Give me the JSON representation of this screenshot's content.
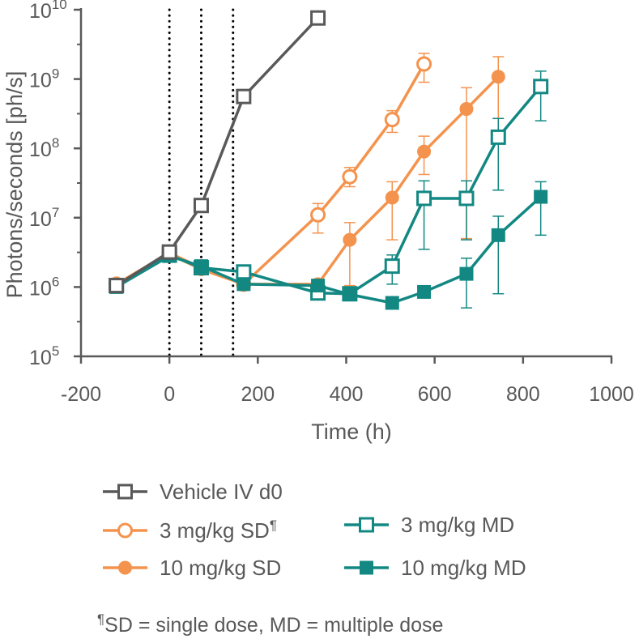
{
  "chart_data": {
    "type": "line",
    "title": "",
    "xlabel": "Time (h)",
    "ylabel": "Photons/seconds [ph/s]",
    "xlim": [
      -200,
      1000
    ],
    "xticks": [
      -200,
      0,
      200,
      400,
      600,
      800,
      1000
    ],
    "xtick_labels": [
      "-200",
      "0",
      "200",
      "400",
      "600",
      "800",
      "1000"
    ],
    "yscale": "log",
    "ylim": [
      100000,
      10000000000
    ],
    "yticks": [
      100000,
      1000000,
      10000000,
      100000000,
      1000000000,
      10000000000
    ],
    "ytick_labels": [
      {
        "base": "10",
        "exp": "5"
      },
      {
        "base": "10",
        "exp": "6"
      },
      {
        "base": "10",
        "exp": "7"
      },
      {
        "base": "10",
        "exp": "8"
      },
      {
        "base": "10",
        "exp": "9"
      },
      {
        "base": "10",
        "exp": "10"
      }
    ],
    "grid": false,
    "dosing_lines_x": [
      0,
      72,
      144
    ],
    "legend_position": "bottom",
    "series": [
      {
        "name": "Vehicle IV d0",
        "color": "#595959",
        "marker": "open-square",
        "x": [
          -120,
          0,
          72,
          168,
          336
        ],
        "y": [
          1050000,
          3200000,
          15000000,
          560000000,
          7600000000
        ],
        "err_low": [
          null,
          null,
          null,
          null,
          null
        ],
        "err_high": [
          null,
          null,
          null,
          null,
          null
        ]
      },
      {
        "name": "3 mg/kg SD",
        "name_mark": "¶",
        "color": "#F4934D",
        "marker": "open-circle",
        "x": [
          -120,
          0,
          72,
          168,
          336,
          408,
          504,
          576
        ],
        "y": [
          1100000,
          3100000,
          1900000,
          1100000,
          11000000,
          39000000,
          260000000,
          1650000000
        ],
        "err_low": [
          null,
          null,
          null,
          null,
          6000000,
          28000000,
          170000000,
          900000000
        ],
        "err_high": [
          null,
          null,
          null,
          null,
          16000000,
          53000000,
          350000000,
          2350000000
        ]
      },
      {
        "name": "10 mg/kg SD",
        "color": "#F4934D",
        "marker": "filled-circle",
        "x": [
          -120,
          0,
          72,
          168,
          336,
          408,
          504,
          576,
          672,
          744
        ],
        "y": [
          1100000,
          3000000,
          1800000,
          1100000,
          1100000,
          4800000,
          19500000,
          90000000,
          370000000,
          1080000000
        ],
        "err_low": [
          null,
          null,
          null,
          null,
          null,
          1050000,
          4800000,
          42000000,
          5000000,
          25000000
        ],
        "err_high": [
          null,
          null,
          null,
          null,
          null,
          8500000,
          33000000,
          150000000,
          750000000,
          2100000000
        ]
      },
      {
        "name": "3 mg/kg MD",
        "color": "#138883",
        "marker": "open-square",
        "x": [
          -120,
          0,
          72,
          168,
          336,
          408,
          504,
          576,
          672,
          744,
          840
        ],
        "y": [
          1050000,
          2900000,
          1900000,
          1650000,
          820000,
          800000,
          2000000,
          19000000,
          19000000,
          145000000,
          780000000
        ],
        "err_low": [
          null,
          null,
          null,
          null,
          null,
          null,
          1100000,
          3500000,
          4800000,
          25000000,
          250000000
        ],
        "err_high": [
          null,
          null,
          null,
          null,
          null,
          null,
          2900000,
          34000000,
          34000000,
          270000000,
          1300000000
        ]
      },
      {
        "name": "10 mg/kg MD",
        "color": "#138883",
        "marker": "filled-square",
        "x": [
          -120,
          0,
          72,
          168,
          336,
          408,
          504,
          576,
          672,
          744,
          840
        ],
        "y": [
          1000000,
          2800000,
          2000000,
          1100000,
          1050000,
          780000,
          590000,
          850000,
          1550000,
          5600000,
          20000000
        ],
        "err_low": [
          null,
          null,
          null,
          null,
          null,
          null,
          null,
          null,
          500000,
          800000,
          5600000
        ],
        "err_high": [
          null,
          null,
          null,
          null,
          null,
          null,
          null,
          null,
          2600000,
          10500000,
          33000000
        ]
      }
    ]
  },
  "footnote": {
    "mark": "¶",
    "text": "SD = single dose, MD = multiple dose"
  }
}
